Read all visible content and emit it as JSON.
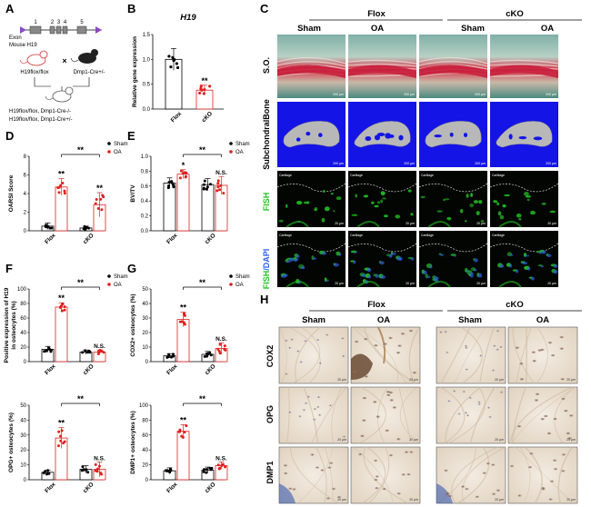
{
  "panels": {
    "A": {
      "letter": "A",
      "exon_label": "Exon",
      "gene_label": "Mouse H19",
      "exon_numbers": [
        "1",
        "2",
        "3",
        "4",
        "5"
      ],
      "mouse_left": "H19flox/flox",
      "mouse_right": "Dmp1-Cre+/-",
      "cross": "×",
      "offspring_1": "H19flox/flox, Dmp1-Cre-/-",
      "offspring_2": "H19flox/flox, Dmp1-Cre+/-"
    },
    "B": {
      "letter": "B"
    },
    "C": {
      "letter": "C",
      "group_flox": "Flox",
      "group_cko": "cKO",
      "col_labels": [
        "Sham",
        "OA",
        "Sham",
        "OA"
      ],
      "row_labels": {
        "so": "S.O.",
        "bone": "SubchondralBone",
        "fish": "FISH",
        "fish_dapi_1": "FISH",
        "fish_dapi_2": "/DAPI"
      },
      "scale_so": "200 μm",
      "scale_bone": "200 μm",
      "scale_fish": "20 μm",
      "cartilage": "Cartilage"
    },
    "D": {
      "letter": "D"
    },
    "E": {
      "letter": "E"
    },
    "F": {
      "letter": "F"
    },
    "G": {
      "letter": "G"
    },
    "H": {
      "letter": "H",
      "group_flox": "Flox",
      "group_cko": "cKO",
      "col_labels": [
        "Sham",
        "OA",
        "Sham",
        "OA"
      ],
      "row_labels": [
        "COX2",
        "OPG",
        "DMP1"
      ],
      "scale": "20 μm"
    }
  },
  "colors": {
    "sham": "#000000",
    "oa": "#e02020",
    "fish_green": "#22c022",
    "dapi_blue": "#3060e0",
    "bone_bg": "#1414e6"
  },
  "chart_data": [
    {
      "id": "B",
      "type": "bar",
      "title": "H19",
      "ylabel": "Relative gene expression",
      "categories": [
        "Flox",
        "cKO"
      ],
      "values": [
        1.0,
        0.38
      ],
      "errors": [
        0.22,
        0.1
      ],
      "point_color": [
        "#000000",
        "#e02020"
      ],
      "ylim": [
        0,
        1.5
      ],
      "yticks": [
        "0.0",
        "0.5",
        "1.0",
        "1.5"
      ],
      "significance": [
        "",
        "**"
      ],
      "legend": false
    },
    {
      "id": "D",
      "type": "bar",
      "ylabel": "OARSI Score",
      "categories": [
        "Flox",
        "cKO"
      ],
      "series": [
        {
          "name": "Sham",
          "values": [
            0.5,
            0.3
          ],
          "errors": [
            0.35,
            0.2
          ]
        },
        {
          "name": "OA",
          "values": [
            4.7,
            2.8
          ],
          "errors": [
            0.9,
            1.3
          ]
        }
      ],
      "ylim": [
        0,
        8
      ],
      "yticks": [
        "0",
        "2",
        "4",
        "6",
        "8"
      ],
      "point_labels": {
        "oa": [
          "**",
          "**"
        ]
      },
      "comparison": {
        "label": "**"
      },
      "legend": "top-right"
    },
    {
      "id": "E",
      "type": "bar",
      "ylabel": "BV/TV",
      "categories": [
        "Flox",
        "cKO"
      ],
      "series": [
        {
          "name": "Sham",
          "values": [
            0.64,
            0.62
          ],
          "errors": [
            0.07,
            0.08
          ]
        },
        {
          "name": "OA",
          "values": [
            0.76,
            0.61
          ],
          "errors": [
            0.06,
            0.12
          ]
        }
      ],
      "ylim": [
        0,
        1.0
      ],
      "yticks": [
        "0.0",
        "0.2",
        "0.4",
        "0.6",
        "0.8",
        "1.0"
      ],
      "point_labels": {
        "oa": [
          "*",
          "N.S."
        ]
      },
      "comparison": {
        "label": "**"
      },
      "legend": "top-right"
    },
    {
      "id": "F1",
      "type": "bar",
      "ylabel_html": [
        "Positive expression of H19",
        "in osteocytes (%)"
      ],
      "categories": [
        "Flox",
        "cKO"
      ],
      "series": [
        {
          "name": "Sham",
          "values": [
            17,
            13
          ],
          "errors": [
            4,
            3
          ]
        },
        {
          "name": "OA",
          "values": [
            75,
            13
          ],
          "errors": [
            6,
            3
          ]
        }
      ],
      "ylim": [
        0,
        100
      ],
      "yticks": [
        "0",
        "20",
        "40",
        "60",
        "80",
        "100"
      ],
      "point_labels": {
        "oa": [
          "**",
          "N.S."
        ]
      },
      "comparison": {
        "label": "**"
      },
      "legend": "top-right"
    },
    {
      "id": "F2",
      "type": "bar",
      "ylabel": "OPG+ osteocytes (%)",
      "categories": [
        "Flox",
        "cKO"
      ],
      "series": [
        {
          "name": "Sham",
          "values": [
            5,
            7
          ],
          "errors": [
            1.5,
            2.5
          ]
        },
        {
          "name": "OA",
          "values": [
            28,
            7
          ],
          "errors": [
            7,
            5
          ]
        }
      ],
      "ylim": [
        0,
        50
      ],
      "yticks": [
        "0",
        "10",
        "20",
        "30",
        "40",
        "50"
      ],
      "point_labels": {
        "oa": [
          "**",
          "N.S."
        ]
      },
      "comparison": {
        "label": "**"
      },
      "legend": false
    },
    {
      "id": "G1",
      "type": "bar",
      "ylabel": "COX2+ osteocytes (%)",
      "categories": [
        "Flox",
        "cKO"
      ],
      "series": [
        {
          "name": "Sham",
          "values": [
            4,
            5
          ],
          "errors": [
            1.5,
            2
          ]
        },
        {
          "name": "OA",
          "values": [
            29,
            9
          ],
          "errors": [
            5,
            4
          ]
        }
      ],
      "ylim": [
        0,
        50
      ],
      "yticks": [
        "0",
        "10",
        "20",
        "30",
        "40",
        "50"
      ],
      "point_labels": {
        "oa": [
          "**",
          "N.S."
        ]
      },
      "comparison": {
        "label": "**"
      },
      "legend": "top-right"
    },
    {
      "id": "G2",
      "type": "bar",
      "ylabel": "DMP1+ osteocytes (%)",
      "categories": [
        "Flox",
        "cKO"
      ],
      "series": [
        {
          "name": "Sham",
          "values": [
            12,
            13
          ],
          "errors": [
            4,
            4
          ]
        },
        {
          "name": "OA",
          "values": [
            65,
            19
          ],
          "errors": [
            9,
            5
          ]
        }
      ],
      "ylim": [
        0,
        100
      ],
      "yticks": [
        "0",
        "20",
        "40",
        "60",
        "80",
        "100"
      ],
      "point_labels": {
        "oa": [
          "**",
          "N.S."
        ]
      },
      "comparison": {
        "label": "**"
      },
      "legend": false
    }
  ]
}
